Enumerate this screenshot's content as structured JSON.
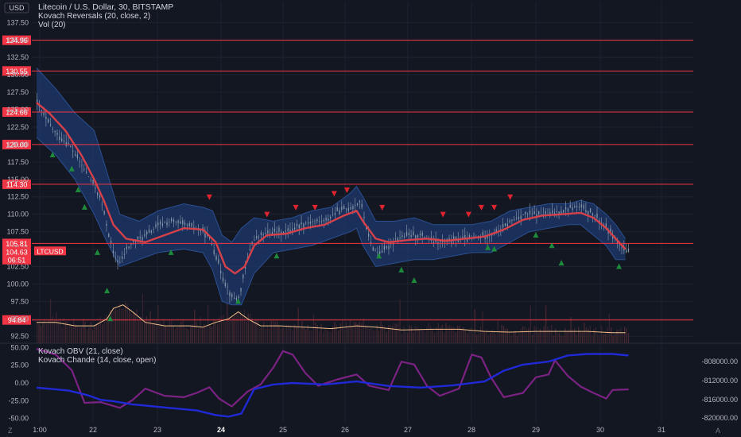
{
  "symbol": {
    "title": "Litecoin / U.S. Dollar, 30, BITSTAMP",
    "currency": "USD",
    "ticker": "LTCUSD",
    "last_price": "104.63",
    "countdown": "06:51"
  },
  "indicators": {
    "main": [
      "Kovach Reversals (20, close, 2)",
      "Vol (20)"
    ],
    "lower": [
      "Kovach OBV (21, close)",
      "Kovach Chande (14, close, open)"
    ]
  },
  "colors": {
    "background": "#131722",
    "level_line": "#f23645",
    "ma_line": "#d5404a",
    "band_fill": "#1e3a6e",
    "candle": "#8fa0b0",
    "volume_ma": "#f5c08a",
    "obv": "#2029d6",
    "chande": "#7b2283",
    "up_marker": "#1e8a3c",
    "down_marker": "#e0242f",
    "axis_text": "#b2b5be"
  },
  "bottom_bar": {
    "left_button": "Z",
    "right_button": "A"
  },
  "chart_data": [
    {
      "type": "candlestick",
      "ylim": [
        91.5,
        140.5
      ],
      "y_ticks": [
        92.5,
        95.0,
        97.5,
        100.0,
        102.5,
        105.0,
        107.5,
        110.0,
        112.5,
        115.0,
        117.5,
        120.0,
        122.5,
        125.0,
        127.5,
        130.0,
        132.5,
        135.0,
        137.5
      ],
      "x_ticks": [
        "1:00",
        "22",
        "23",
        "24",
        "25",
        "26",
        "27",
        "28",
        "29",
        "30",
        "31"
      ],
      "x_tick_bold": [
        "24"
      ],
      "level_lines": [
        134.96,
        130.55,
        124.66,
        120.0,
        114.3,
        105.81,
        94.84
      ],
      "price_label": 104.63,
      "price_series": [
        [
          0,
          126
        ],
        [
          0.15,
          123.5
        ],
        [
          0.3,
          121.5
        ],
        [
          0.5,
          120
        ],
        [
          0.7,
          117
        ],
        [
          0.9,
          114
        ],
        [
          1.0,
          112
        ],
        [
          1.1,
          108
        ],
        [
          1.2,
          104
        ],
        [
          1.3,
          103
        ],
        [
          1.4,
          105
        ],
        [
          1.5,
          106
        ],
        [
          1.7,
          107
        ],
        [
          1.9,
          108.5
        ],
        [
          2.1,
          109
        ],
        [
          2.3,
          108.5
        ],
        [
          2.5,
          108
        ],
        [
          2.6,
          107.5
        ],
        [
          2.7,
          106.5
        ],
        [
          2.8,
          104
        ],
        [
          2.9,
          101
        ],
        [
          3.05,
          98
        ],
        [
          3.15,
          98
        ],
        [
          3.25,
          102
        ],
        [
          3.35,
          106
        ],
        [
          3.5,
          107
        ],
        [
          3.7,
          107.5
        ],
        [
          3.9,
          107.5
        ],
        [
          4.1,
          108.5
        ],
        [
          4.3,
          109
        ],
        [
          4.5,
          109
        ],
        [
          4.7,
          110.5
        ],
        [
          4.9,
          111
        ],
        [
          5.0,
          111.5
        ],
        [
          5.05,
          112
        ],
        [
          5.1,
          110
        ],
        [
          5.2,
          106
        ],
        [
          5.3,
          104.5
        ],
        [
          5.45,
          105
        ],
        [
          5.6,
          106.5
        ],
        [
          5.8,
          107
        ],
        [
          6.0,
          107
        ],
        [
          6.2,
          106
        ],
        [
          6.4,
          106
        ],
        [
          6.6,
          106.5
        ],
        [
          6.8,
          106.5
        ],
        [
          7.0,
          107
        ],
        [
          7.2,
          107.5
        ],
        [
          7.4,
          109
        ],
        [
          7.6,
          110
        ],
        [
          7.8,
          110
        ],
        [
          8.0,
          110
        ],
        [
          8.2,
          110.5
        ],
        [
          8.35,
          111
        ],
        [
          8.5,
          111
        ],
        [
          8.7,
          110
        ],
        [
          8.85,
          108.5
        ],
        [
          9.0,
          107
        ],
        [
          9.1,
          105.5
        ],
        [
          9.2,
          104.5
        ],
        [
          9.25,
          104.63
        ]
      ],
      "ma_series": [
        [
          0,
          126
        ],
        [
          0.2,
          124.5
        ],
        [
          0.45,
          122
        ],
        [
          0.7,
          118.5
        ],
        [
          0.9,
          115
        ],
        [
          1.05,
          112
        ],
        [
          1.2,
          108.5
        ],
        [
          1.4,
          106.5
        ],
        [
          1.7,
          106
        ],
        [
          2.0,
          107
        ],
        [
          2.3,
          108
        ],
        [
          2.6,
          107.8
        ],
        [
          2.8,
          106
        ],
        [
          2.95,
          102.5
        ],
        [
          3.1,
          101.5
        ],
        [
          3.25,
          102.5
        ],
        [
          3.4,
          105.5
        ],
        [
          3.6,
          107
        ],
        [
          3.9,
          107.2
        ],
        [
          4.2,
          108
        ],
        [
          4.5,
          108.5
        ],
        [
          4.8,
          109.8
        ],
        [
          5.0,
          110.5
        ],
        [
          5.1,
          109
        ],
        [
          5.3,
          106.5
        ],
        [
          5.5,
          106
        ],
        [
          5.8,
          106.3
        ],
        [
          6.1,
          106.5
        ],
        [
          6.4,
          106.2
        ],
        [
          6.7,
          106.5
        ],
        [
          7.0,
          106.8
        ],
        [
          7.3,
          107.8
        ],
        [
          7.6,
          109.2
        ],
        [
          7.9,
          109.8
        ],
        [
          8.2,
          110
        ],
        [
          8.5,
          110.2
        ],
        [
          8.7,
          109.5
        ],
        [
          8.9,
          108
        ],
        [
          9.05,
          106.5
        ],
        [
          9.2,
          105
        ]
      ],
      "band_upper": [
        [
          0,
          131
        ],
        [
          0.3,
          128
        ],
        [
          0.6,
          124.5
        ],
        [
          0.9,
          122
        ],
        [
          1.1,
          116
        ],
        [
          1.3,
          110
        ],
        [
          1.6,
          109
        ],
        [
          1.9,
          110.5
        ],
        [
          2.3,
          111.5
        ],
        [
          2.6,
          111
        ],
        [
          2.75,
          110.5
        ],
        [
          2.9,
          107
        ],
        [
          3.05,
          106
        ],
        [
          3.2,
          108
        ],
        [
          3.4,
          109.5
        ],
        [
          3.7,
          109
        ],
        [
          4.0,
          109.5
        ],
        [
          4.3,
          110.5
        ],
        [
          4.6,
          111
        ],
        [
          4.9,
          113
        ],
        [
          5.0,
          114
        ],
        [
          5.1,
          112.5
        ],
        [
          5.3,
          109
        ],
        [
          5.6,
          109
        ],
        [
          5.9,
          109.5
        ],
        [
          6.2,
          108.5
        ],
        [
          6.5,
          108.5
        ],
        [
          6.8,
          108.5
        ],
        [
          7.1,
          109
        ],
        [
          7.4,
          110.5
        ],
        [
          7.7,
          111
        ],
        [
          8.0,
          111.5
        ],
        [
          8.3,
          111.5
        ],
        [
          8.5,
          112
        ],
        [
          8.7,
          111.5
        ],
        [
          8.9,
          110
        ],
        [
          9.05,
          108.5
        ],
        [
          9.2,
          106.5
        ]
      ],
      "band_lower": [
        [
          0,
          121
        ],
        [
          0.3,
          118.5
        ],
        [
          0.6,
          115
        ],
        [
          0.9,
          110
        ],
        [
          1.1,
          106
        ],
        [
          1.3,
          102.5
        ],
        [
          1.6,
          103.5
        ],
        [
          1.9,
          104.5
        ],
        [
          2.3,
          105
        ],
        [
          2.6,
          104.5
        ],
        [
          2.75,
          102
        ],
        [
          2.9,
          97.5
        ],
        [
          3.05,
          97
        ],
        [
          3.2,
          97
        ],
        [
          3.4,
          101.5
        ],
        [
          3.7,
          104.5
        ],
        [
          4.0,
          105
        ],
        [
          4.3,
          105.5
        ],
        [
          4.6,
          106.5
        ],
        [
          4.9,
          107.5
        ],
        [
          5.0,
          108
        ],
        [
          5.1,
          105.5
        ],
        [
          5.3,
          102.5
        ],
        [
          5.6,
          103
        ],
        [
          5.9,
          103.5
        ],
        [
          6.2,
          103.5
        ],
        [
          6.5,
          104
        ],
        [
          6.8,
          104.5
        ],
        [
          7.1,
          104.5
        ],
        [
          7.4,
          106
        ],
        [
          7.7,
          107.5
        ],
        [
          8.0,
          108
        ],
        [
          8.3,
          108.5
        ],
        [
          8.5,
          108.5
        ],
        [
          8.7,
          107
        ],
        [
          8.9,
          105.5
        ],
        [
          9.05,
          103.5
        ],
        [
          9.2,
          103.5
        ]
      ],
      "up_markers": [
        [
          0.25,
          118.5
        ],
        [
          0.55,
          116.5
        ],
        [
          0.65,
          113.5
        ],
        [
          0.75,
          111
        ],
        [
          0.95,
          104.5
        ],
        [
          1.1,
          99
        ],
        [
          1.15,
          95
        ],
        [
          2.1,
          104.5
        ],
        [
          3.15,
          97.5
        ],
        [
          3.75,
          104
        ],
        [
          5.35,
          104
        ],
        [
          5.7,
          102
        ],
        [
          5.9,
          100.5
        ],
        [
          7.05,
          105.2
        ],
        [
          7.15,
          105
        ],
        [
          7.8,
          107
        ],
        [
          8.05,
          105.5
        ],
        [
          8.2,
          103
        ],
        [
          9.1,
          102.5
        ]
      ],
      "down_markers": [
        [
          2.7,
          112.5
        ],
        [
          3.6,
          110
        ],
        [
          4.05,
          111
        ],
        [
          4.35,
          111
        ],
        [
          4.65,
          113
        ],
        [
          4.85,
          113.5
        ],
        [
          5.4,
          111
        ],
        [
          6.35,
          110
        ],
        [
          6.75,
          110
        ],
        [
          6.95,
          111
        ],
        [
          7.15,
          111
        ],
        [
          7.4,
          112.5
        ]
      ],
      "volume_ma": [
        [
          0,
          94.5
        ],
        [
          0.3,
          94.5
        ],
        [
          0.6,
          94
        ],
        [
          0.9,
          94
        ],
        [
          1.1,
          95
        ],
        [
          1.2,
          96.5
        ],
        [
          1.35,
          97
        ],
        [
          1.5,
          96
        ],
        [
          1.7,
          94.5
        ],
        [
          2.0,
          94
        ],
        [
          2.4,
          94
        ],
        [
          2.6,
          93.8
        ],
        [
          2.8,
          94.5
        ],
        [
          3.0,
          95
        ],
        [
          3.15,
          96
        ],
        [
          3.3,
          95
        ],
        [
          3.5,
          94
        ],
        [
          3.8,
          94
        ],
        [
          4.2,
          93.8
        ],
        [
          4.6,
          93.6
        ],
        [
          5.0,
          94
        ],
        [
          5.3,
          93.8
        ],
        [
          5.7,
          93.4
        ],
        [
          6.2,
          93.5
        ],
        [
          6.6,
          93.5
        ],
        [
          7.0,
          93.2
        ],
        [
          7.4,
          93.1
        ],
        [
          7.8,
          93.2
        ],
        [
          8.2,
          93.2
        ],
        [
          8.6,
          93.2
        ],
        [
          9.0,
          93
        ],
        [
          9.2,
          93
        ]
      ]
    },
    {
      "type": "line",
      "ylim": [
        -56,
        56
      ],
      "y_ticks": [
        50.0,
        25.0,
        0.0,
        -25.0,
        -50.0
      ],
      "right_ticks": [
        "-808000.00",
        "-812000.00",
        "-816000.00",
        "-820000.00"
      ],
      "series": [
        {
          "name": "Kovach Chande (14, close, open)",
          "values": [
            [
              0,
              48
            ],
            [
              0.3,
              40
            ],
            [
              0.55,
              18
            ],
            [
              0.65,
              -5
            ],
            [
              0.75,
              -28
            ],
            [
              1.0,
              -27
            ],
            [
              1.3,
              -35
            ],
            [
              1.5,
              -24
            ],
            [
              1.7,
              -8
            ],
            [
              2.0,
              -18
            ],
            [
              2.3,
              -20
            ],
            [
              2.5,
              -14
            ],
            [
              2.7,
              -6
            ],
            [
              2.85,
              -22
            ],
            [
              3.05,
              -33
            ],
            [
              3.3,
              -12
            ],
            [
              3.5,
              -2
            ],
            [
              3.7,
              22
            ],
            [
              3.85,
              45
            ],
            [
              4.0,
              40
            ],
            [
              4.2,
              14
            ],
            [
              4.4,
              -4
            ],
            [
              4.7,
              5
            ],
            [
              5.0,
              12
            ],
            [
              5.2,
              -4
            ],
            [
              5.5,
              -10
            ],
            [
              5.7,
              30
            ],
            [
              5.9,
              26
            ],
            [
              6.1,
              -4
            ],
            [
              6.3,
              -18
            ],
            [
              6.6,
              -8
            ],
            [
              6.8,
              40
            ],
            [
              6.95,
              36
            ],
            [
              7.1,
              8
            ],
            [
              7.3,
              -20
            ],
            [
              7.6,
              -14
            ],
            [
              7.8,
              8
            ],
            [
              8.0,
              12
            ],
            [
              8.1,
              32
            ],
            [
              8.3,
              10
            ],
            [
              8.5,
              -5
            ],
            [
              8.7,
              -14
            ],
            [
              8.9,
              -22
            ],
            [
              9.0,
              -10
            ],
            [
              9.25,
              -9
            ]
          ]
        },
        {
          "name": "Kovach OBV (21, close)",
          "values": [
            [
              0,
              -818500
            ],
            [
              0.5,
              -819500
            ],
            [
              0.8,
              -821000
            ],
            [
              1.0,
              -822500
            ],
            [
              1.2,
              -823000
            ],
            [
              1.5,
              -824000
            ],
            [
              2.0,
              -825000
            ],
            [
              2.5,
              -826000
            ],
            [
              2.8,
              -827500
            ],
            [
              3.0,
              -828000
            ],
            [
              3.2,
              -827000
            ],
            [
              3.4,
              -819000
            ],
            [
              3.7,
              -817500
            ],
            [
              4.0,
              -817000
            ],
            [
              4.5,
              -817500
            ],
            [
              5.0,
              -816500
            ],
            [
              5.5,
              -818000
            ],
            [
              6.0,
              -818500
            ],
            [
              6.5,
              -817800
            ],
            [
              7.0,
              -816500
            ],
            [
              7.3,
              -813000
            ],
            [
              7.6,
              -811000
            ],
            [
              8.0,
              -810000
            ],
            [
              8.3,
              -808000
            ],
            [
              8.6,
              -807500
            ],
            [
              9.0,
              -807500
            ],
            [
              9.25,
              -808000
            ]
          ]
        }
      ]
    }
  ]
}
